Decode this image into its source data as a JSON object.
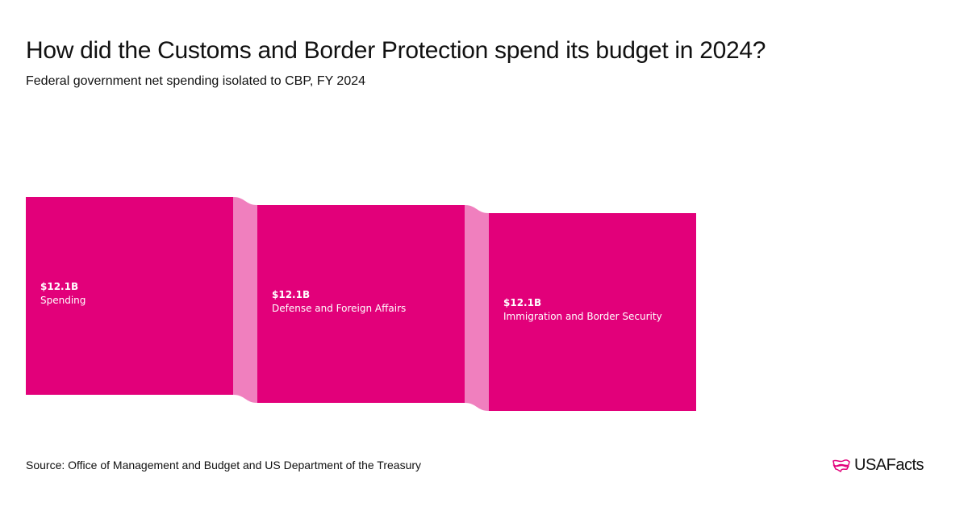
{
  "title": "How did the Customs and Border Protection spend its budget in 2024?",
  "subtitle": "Federal government net spending isolated to CBP, FY 2024",
  "source": "Source: Office of Management and Budget and US Department of the Treasury",
  "logo": {
    "text": "USAFacts",
    "icon": "us-map-flag-icon"
  },
  "colors": {
    "node": "#E2007A",
    "link": "#F07FBE"
  },
  "chart_data": {
    "type": "sankey",
    "nodes": [
      {
        "name": "Spending",
        "value_label": "$12.1B",
        "value": 12.1
      },
      {
        "name": "Defense and Foreign Affairs",
        "value_label": "$12.1B",
        "value": 12.1
      },
      {
        "name": "Immigration and Border Security",
        "value_label": "$12.1B",
        "value": 12.1
      }
    ],
    "links": [
      {
        "source": "Spending",
        "target": "Defense and Foreign Affairs",
        "value": 12.1
      },
      {
        "source": "Defense and Foreign Affairs",
        "target": "Immigration and Border Security",
        "value": 12.1
      }
    ],
    "unit": "billion USD"
  }
}
